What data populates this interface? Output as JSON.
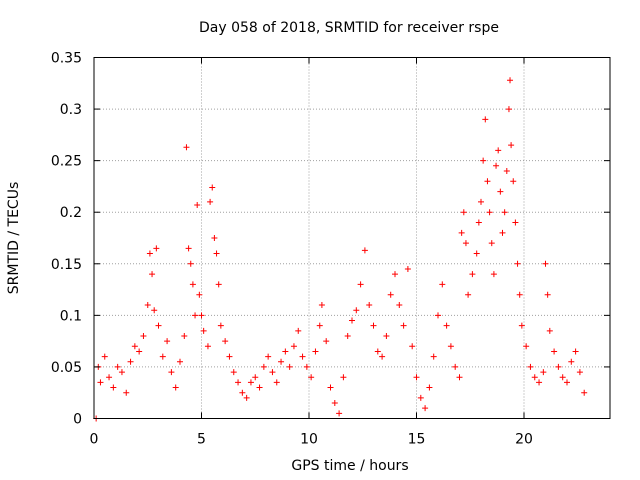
{
  "chart_data": {
    "type": "scatter",
    "title": "Day 058 of 2018, SRMTID for receiver rspe",
    "xlabel": "GPS time / hours",
    "ylabel": "SRMTID / TECUs",
    "xlim": [
      0,
      24
    ],
    "ylim": [
      0,
      0.35
    ],
    "xticks": [
      0,
      5,
      10,
      15,
      20
    ],
    "xtick_labels": [
      "0",
      "5",
      "10",
      "15",
      "20"
    ],
    "yticks": [
      0,
      0.05,
      0.1,
      0.15,
      0.2,
      0.25,
      0.3,
      0.35
    ],
    "ytick_labels": [
      "0",
      "0.05",
      "0.1",
      "0.15",
      "0.2",
      "0.25",
      "0.3",
      "0.35"
    ],
    "grid": true,
    "marker": "+",
    "color": "#ff0000",
    "series": [
      {
        "name": "SRMTID",
        "points": [
          [
            0.1,
            0.0
          ],
          [
            0.2,
            0.05
          ],
          [
            0.3,
            0.035
          ],
          [
            0.5,
            0.06
          ],
          [
            0.7,
            0.04
          ],
          [
            0.9,
            0.03
          ],
          [
            1.1,
            0.05
          ],
          [
            1.3,
            0.045
          ],
          [
            1.5,
            0.025
          ],
          [
            1.7,
            0.055
          ],
          [
            1.9,
            0.07
          ],
          [
            2.1,
            0.065
          ],
          [
            2.3,
            0.08
          ],
          [
            2.5,
            0.11
          ],
          [
            2.6,
            0.16
          ],
          [
            2.7,
            0.14
          ],
          [
            2.8,
            0.105
          ],
          [
            2.9,
            0.165
          ],
          [
            3.0,
            0.09
          ],
          [
            3.2,
            0.06
          ],
          [
            3.4,
            0.075
          ],
          [
            3.6,
            0.045
          ],
          [
            3.8,
            0.03
          ],
          [
            4.0,
            0.055
          ],
          [
            4.2,
            0.08
          ],
          [
            4.3,
            0.263
          ],
          [
            4.4,
            0.165
          ],
          [
            4.5,
            0.15
          ],
          [
            4.6,
            0.13
          ],
          [
            4.7,
            0.1
          ],
          [
            4.8,
            0.207
          ],
          [
            4.9,
            0.12
          ],
          [
            5.0,
            0.1
          ],
          [
            5.1,
            0.085
          ],
          [
            5.3,
            0.07
          ],
          [
            5.4,
            0.21
          ],
          [
            5.5,
            0.224
          ],
          [
            5.6,
            0.175
          ],
          [
            5.7,
            0.16
          ],
          [
            5.8,
            0.13
          ],
          [
            5.9,
            0.09
          ],
          [
            6.1,
            0.075
          ],
          [
            6.3,
            0.06
          ],
          [
            6.5,
            0.045
          ],
          [
            6.7,
            0.035
          ],
          [
            6.9,
            0.025
          ],
          [
            7.1,
            0.02
          ],
          [
            7.3,
            0.035
          ],
          [
            7.5,
            0.04
          ],
          [
            7.7,
            0.03
          ],
          [
            7.9,
            0.05
          ],
          [
            8.1,
            0.06
          ],
          [
            8.3,
            0.045
          ],
          [
            8.5,
            0.035
          ],
          [
            8.7,
            0.055
          ],
          [
            8.9,
            0.065
          ],
          [
            9.1,
            0.05
          ],
          [
            9.3,
            0.07
          ],
          [
            9.5,
            0.085
          ],
          [
            9.7,
            0.06
          ],
          [
            9.9,
            0.05
          ],
          [
            10.1,
            0.04
          ],
          [
            10.3,
            0.065
          ],
          [
            10.5,
            0.09
          ],
          [
            10.6,
            0.11
          ],
          [
            10.8,
            0.075
          ],
          [
            11.0,
            0.03
          ],
          [
            11.2,
            0.015
          ],
          [
            11.4,
            0.005
          ],
          [
            11.6,
            0.04
          ],
          [
            11.8,
            0.08
          ],
          [
            12.0,
            0.095
          ],
          [
            12.2,
            0.105
          ],
          [
            12.4,
            0.13
          ],
          [
            12.6,
            0.163
          ],
          [
            12.8,
            0.11
          ],
          [
            13.0,
            0.09
          ],
          [
            13.2,
            0.065
          ],
          [
            13.4,
            0.06
          ],
          [
            13.6,
            0.08
          ],
          [
            13.8,
            0.12
          ],
          [
            14.0,
            0.14
          ],
          [
            14.2,
            0.11
          ],
          [
            14.4,
            0.09
          ],
          [
            14.6,
            0.145
          ],
          [
            14.8,
            0.07
          ],
          [
            15.0,
            0.04
          ],
          [
            15.2,
            0.02
          ],
          [
            15.4,
            0.01
          ],
          [
            15.6,
            0.03
          ],
          [
            15.8,
            0.06
          ],
          [
            16.0,
            0.1
          ],
          [
            16.2,
            0.13
          ],
          [
            16.4,
            0.09
          ],
          [
            16.6,
            0.07
          ],
          [
            16.8,
            0.05
          ],
          [
            17.0,
            0.04
          ],
          [
            17.1,
            0.18
          ],
          [
            17.2,
            0.2
          ],
          [
            17.3,
            0.17
          ],
          [
            17.4,
            0.12
          ],
          [
            17.6,
            0.14
          ],
          [
            17.8,
            0.16
          ],
          [
            17.9,
            0.19
          ],
          [
            18.0,
            0.21
          ],
          [
            18.1,
            0.25
          ],
          [
            18.2,
            0.29
          ],
          [
            18.3,
            0.23
          ],
          [
            18.4,
            0.2
          ],
          [
            18.5,
            0.17
          ],
          [
            18.6,
            0.14
          ],
          [
            18.7,
            0.245
          ],
          [
            18.8,
            0.26
          ],
          [
            18.9,
            0.22
          ],
          [
            19.0,
            0.18
          ],
          [
            19.1,
            0.2
          ],
          [
            19.2,
            0.24
          ],
          [
            19.3,
            0.3
          ],
          [
            19.35,
            0.328
          ],
          [
            19.4,
            0.265
          ],
          [
            19.5,
            0.23
          ],
          [
            19.6,
            0.19
          ],
          [
            19.7,
            0.15
          ],
          [
            19.8,
            0.12
          ],
          [
            19.9,
            0.09
          ],
          [
            20.1,
            0.07
          ],
          [
            20.3,
            0.05
          ],
          [
            20.5,
            0.04
          ],
          [
            20.7,
            0.035
          ],
          [
            20.9,
            0.045
          ],
          [
            21.0,
            0.15
          ],
          [
            21.1,
            0.12
          ],
          [
            21.2,
            0.085
          ],
          [
            21.4,
            0.065
          ],
          [
            21.6,
            0.05
          ],
          [
            21.8,
            0.04
          ],
          [
            22.0,
            0.035
          ],
          [
            22.2,
            0.055
          ],
          [
            22.4,
            0.065
          ],
          [
            22.6,
            0.045
          ],
          [
            22.8,
            0.025
          ]
        ]
      }
    ]
  }
}
